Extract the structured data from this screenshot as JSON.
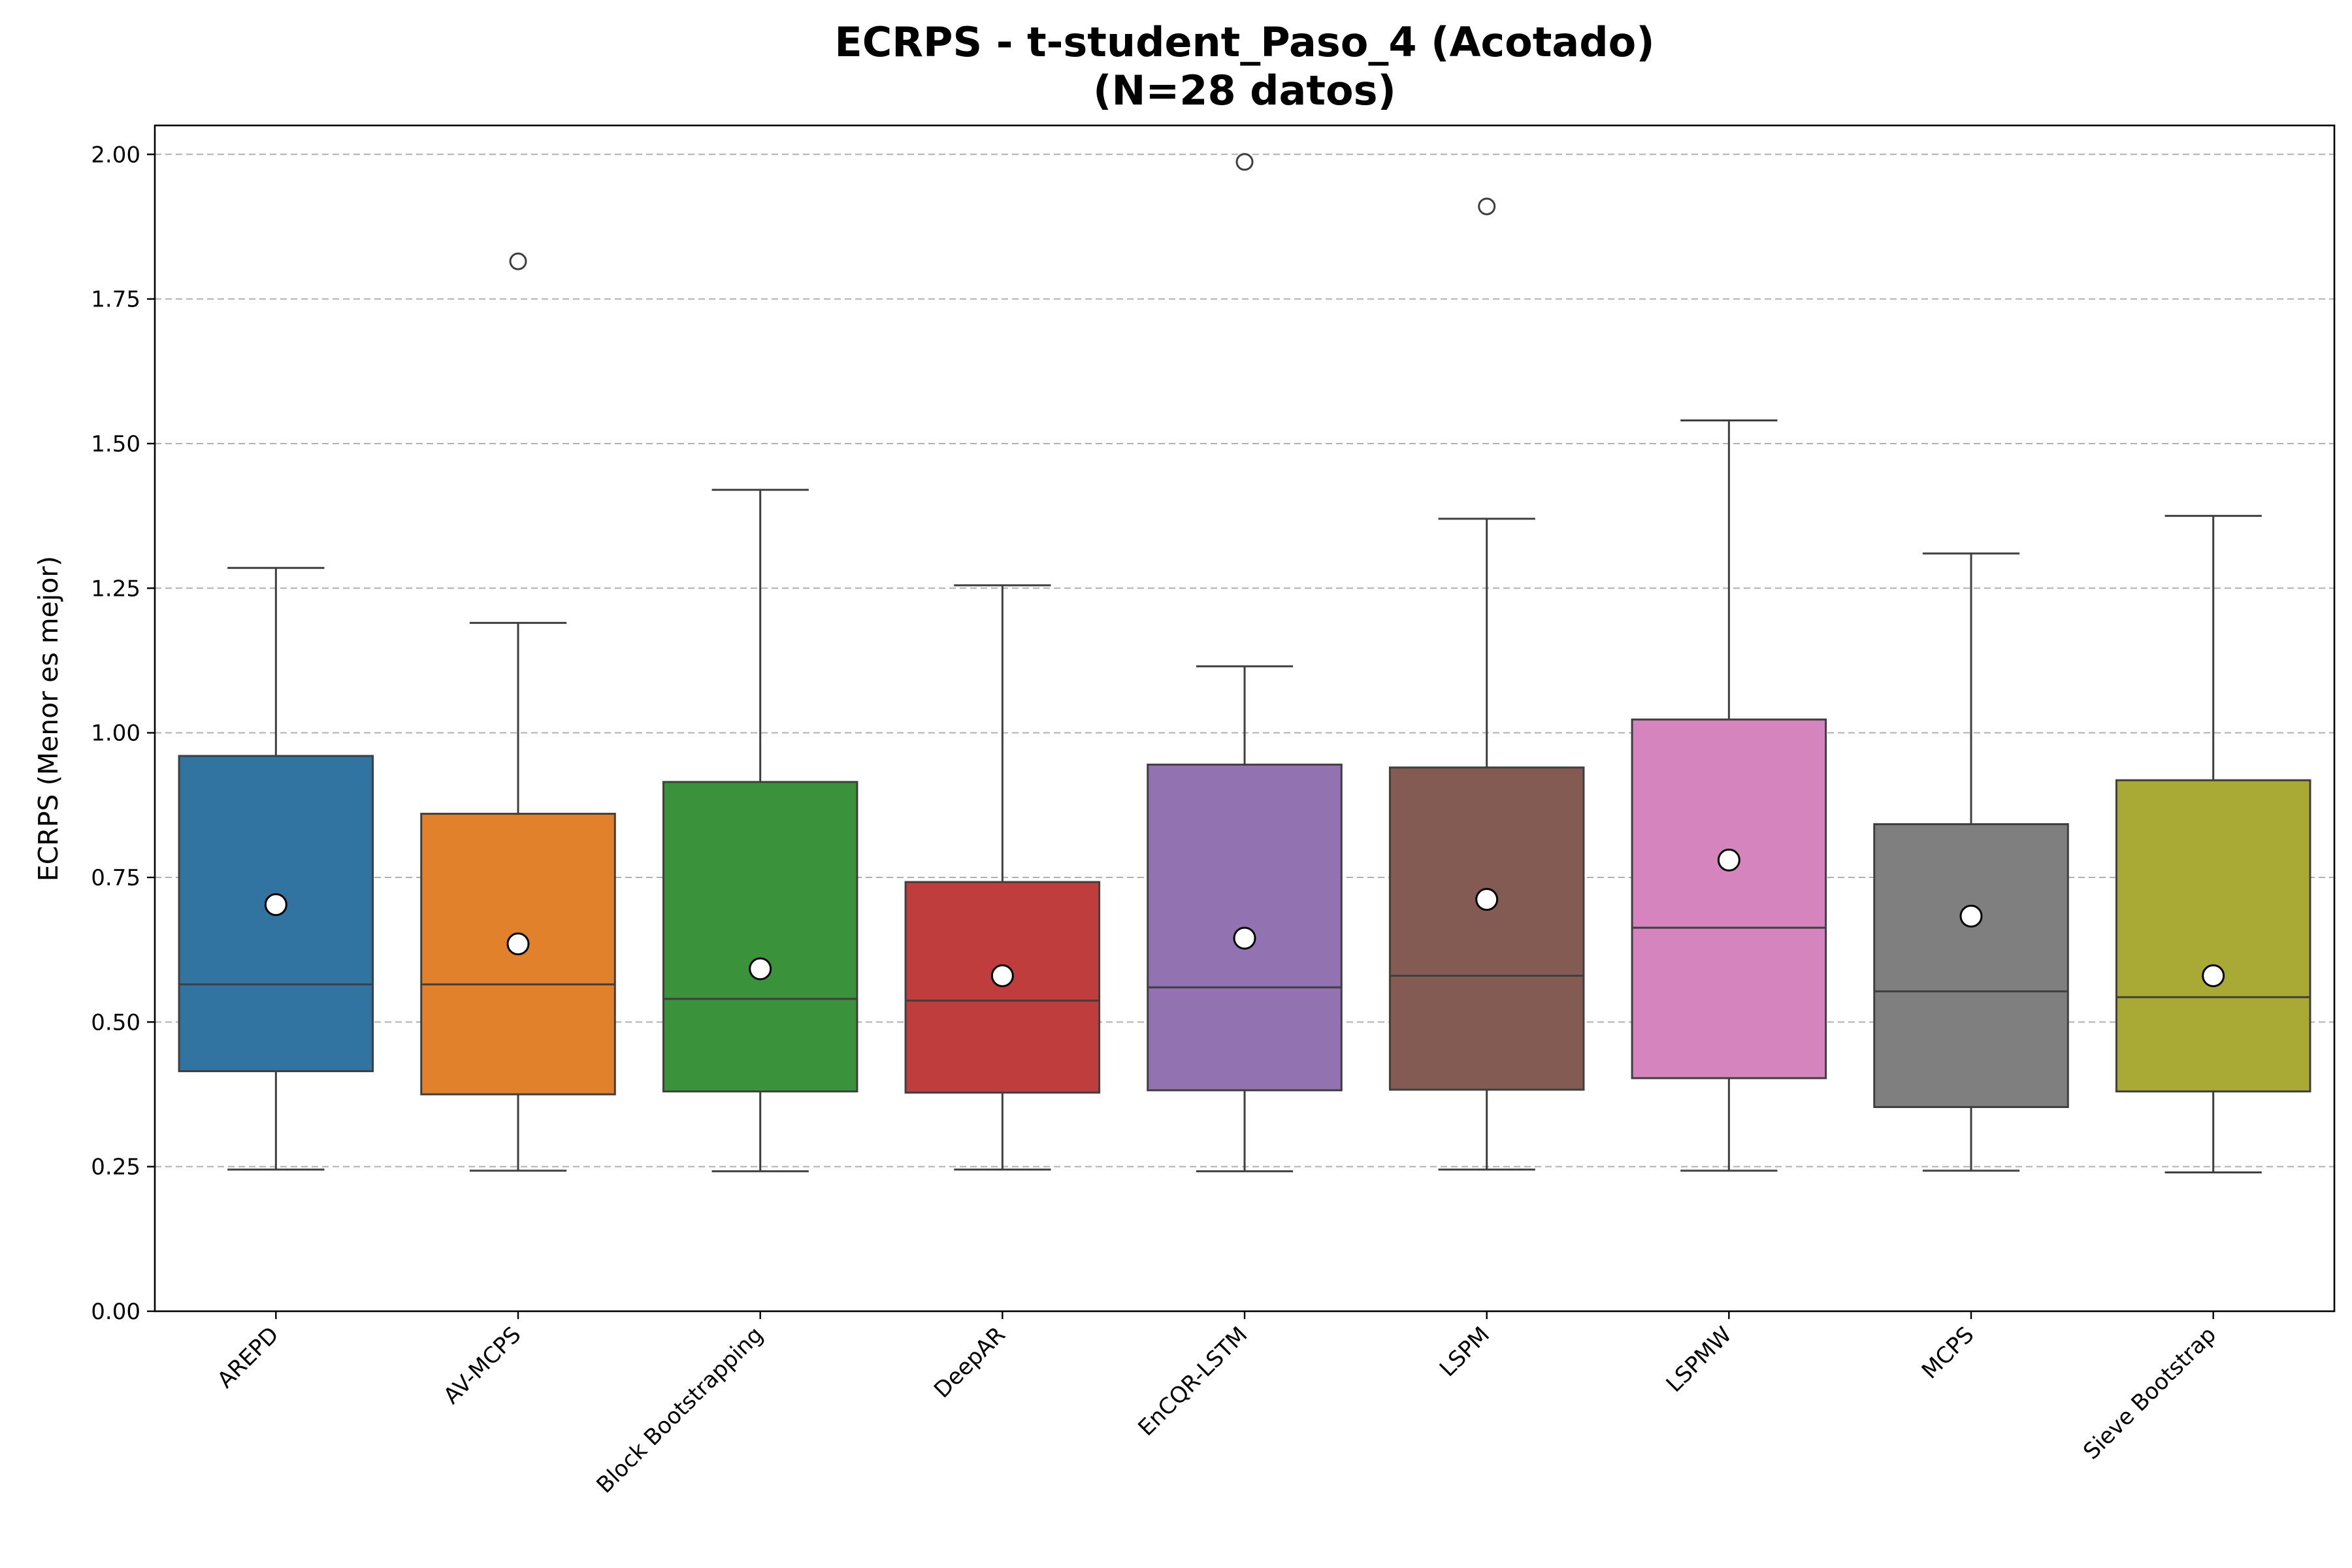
{
  "chart_data": {
    "type": "box",
    "title": "ECRPS - t-student_Paso_4 (Acotado)",
    "subtitle": "(N=28 datos)",
    "xlabel": "",
    "ylabel": "ECRPS (Menor es mejor)",
    "ylim": [
      0,
      2.05
    ],
    "yticks": [
      "0.00",
      "0.25",
      "0.50",
      "0.75",
      "1.00",
      "1.25",
      "1.50",
      "1.75",
      "2.00"
    ],
    "grid": "horizontal dashed",
    "categories": [
      "AREPD",
      "AV-MCPS",
      "Block Bootstrapping",
      "DeepAR",
      "EnCQR-LSTM",
      "LSPM",
      "LSPMW",
      "MCPS",
      "Sieve Bootstrap"
    ],
    "series": [
      {
        "category": "AREPD",
        "color": "#3274a1",
        "whisker_low": 0.245,
        "q1": 0.415,
        "median": 0.565,
        "q3": 0.96,
        "whisker_high": 1.285,
        "mean": 0.703,
        "outliers": []
      },
      {
        "category": "AV-MCPS",
        "color": "#e1812c",
        "whisker_low": 0.243,
        "q1": 0.375,
        "median": 0.565,
        "q3": 0.86,
        "whisker_high": 1.19,
        "mean": 0.635,
        "outliers": [
          1.815
        ]
      },
      {
        "category": "Block Bootstrapping",
        "color": "#3a923a",
        "whisker_low": 0.242,
        "q1": 0.38,
        "median": 0.54,
        "q3": 0.915,
        "whisker_high": 1.42,
        "mean": 0.592,
        "outliers": []
      },
      {
        "category": "DeepAR",
        "color": "#c03d3e",
        "whisker_low": 0.245,
        "q1": 0.378,
        "median": 0.537,
        "q3": 0.742,
        "whisker_high": 1.255,
        "mean": 0.58,
        "outliers": []
      },
      {
        "category": "EnCQR-LSTM",
        "color": "#9372b2",
        "whisker_low": 0.242,
        "q1": 0.382,
        "median": 0.56,
        "q3": 0.945,
        "whisker_high": 1.115,
        "mean": 0.645,
        "outliers": [
          1.987
        ]
      },
      {
        "category": "LSPM",
        "color": "#845b53",
        "whisker_low": 0.245,
        "q1": 0.383,
        "median": 0.58,
        "q3": 0.94,
        "whisker_high": 1.37,
        "mean": 0.712,
        "outliers": [
          1.91
        ]
      },
      {
        "category": "LSPMW",
        "color": "#d684bd",
        "whisker_low": 0.243,
        "q1": 0.403,
        "median": 0.663,
        "q3": 1.023,
        "whisker_high": 1.54,
        "mean": 0.78,
        "outliers": []
      },
      {
        "category": "MCPS",
        "color": "#7f7f7f",
        "whisker_low": 0.243,
        "q1": 0.353,
        "median": 0.553,
        "q3": 0.842,
        "whisker_high": 1.31,
        "mean": 0.683,
        "outliers": []
      },
      {
        "category": "Sieve Bootstrap",
        "color": "#a9aa35",
        "whisker_low": 0.24,
        "q1": 0.38,
        "median": 0.543,
        "q3": 0.918,
        "whisker_high": 1.375,
        "mean": 0.58,
        "outliers": []
      }
    ]
  }
}
